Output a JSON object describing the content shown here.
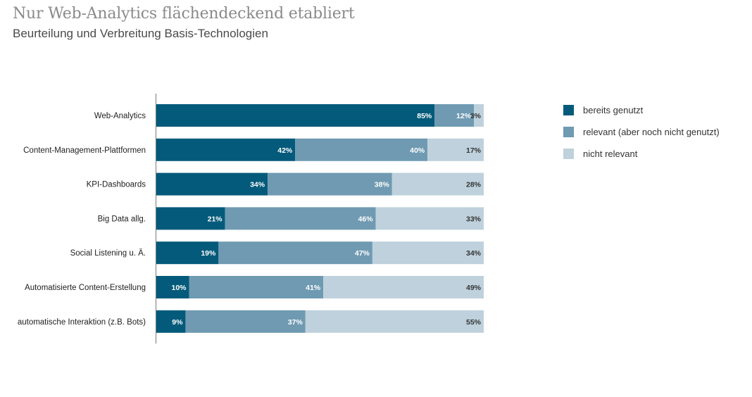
{
  "chart_data": {
    "type": "bar",
    "orientation": "horizontal",
    "stacked": true,
    "title": "Nur Web-Analytics flächendeckend etabliert",
    "subtitle": "Beurteilung und Verbreitung Basis-Technologien",
    "categories": [
      "Web-Analytics",
      "Content-Management-Plattformen",
      "KPI-Dashboards",
      "Big Data allg.",
      "Social Listening u. Ä.",
      "Automatisierte Content-Erstellung",
      "automatische Interaktion (z.B. Bots)"
    ],
    "series": [
      {
        "name": "bereits genutzt",
        "color": "#045a7a",
        "label_color": "#ffffff",
        "values": [
          85,
          42,
          34,
          21,
          19,
          10,
          9
        ],
        "labels": [
          "85%",
          "42%",
          "34%",
          "21%",
          "19%",
          "10%",
          "9%"
        ]
      },
      {
        "name": "relevant (aber noch nicht genutzt)",
        "color": "#6f9ab2",
        "label_color": "#ffffff",
        "values": [
          12,
          40,
          38,
          46,
          47,
          41,
          37
        ],
        "labels": [
          "12%",
          "40%",
          "38%",
          "46%",
          "47%",
          "41%",
          "37%"
        ]
      },
      {
        "name": "nicht relevant",
        "color": "#bed1dc",
        "label_color": "#333333",
        "values": [
          3,
          17,
          28,
          33,
          34,
          49,
          55
        ],
        "labels": [
          "3%",
          "17%",
          "28%",
          "33%",
          "34%",
          "49%",
          "55%"
        ]
      }
    ],
    "xlim": [
      0,
      100
    ],
    "grid": false,
    "legend_position": "right"
  }
}
